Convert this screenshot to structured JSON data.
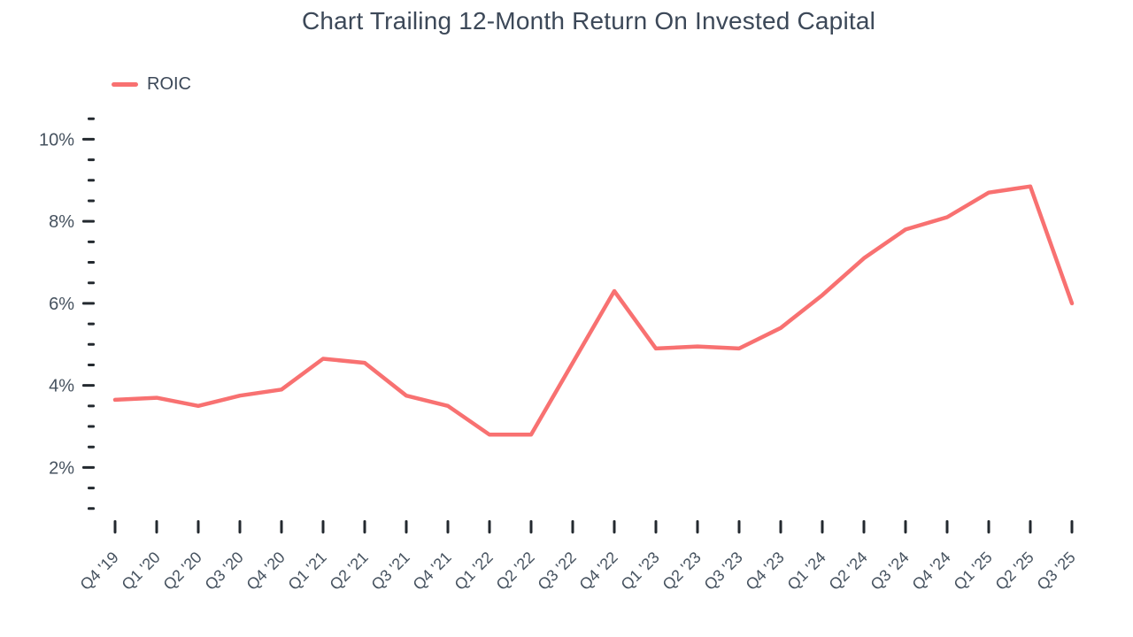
{
  "title": "Chart Trailing 12-Month Return On Invested Capital",
  "legend": {
    "items": [
      {
        "label": "ROIC",
        "color": "#F87171"
      }
    ]
  },
  "chart_data": {
    "type": "line",
    "title": "Chart Trailing 12-Month Return On Invested Capital",
    "xlabel": "",
    "ylabel": "",
    "categories": [
      "Q4 '19",
      "Q1 '20",
      "Q2 '20",
      "Q3 '20",
      "Q4 '20",
      "Q1 '21",
      "Q2 '21",
      "Q3 '21",
      "Q4 '21",
      "Q1 '22",
      "Q2 '22",
      "Q3 '22",
      "Q4 '22",
      "Q1 '23",
      "Q2 '23",
      "Q3 '23",
      "Q4 '23",
      "Q1 '24",
      "Q2 '24",
      "Q3 '24",
      "Q4 '24",
      "Q1 '25",
      "Q2 '25",
      "Q3 '25"
    ],
    "series": [
      {
        "name": "ROIC",
        "color": "#F87171",
        "values": [
          3.65,
          3.7,
          3.5,
          3.75,
          3.9,
          4.65,
          4.55,
          3.75,
          3.5,
          2.8,
          2.8,
          4.55,
          6.3,
          4.9,
          4.95,
          4.9,
          5.4,
          6.2,
          7.1,
          7.8,
          8.1,
          8.7,
          8.85,
          6.0
        ]
      }
    ],
    "y_axis": {
      "unit": "%",
      "min": 1.0,
      "max": 10.5,
      "minor_tick_step": 0.5,
      "major_ticks": [
        2,
        4,
        6,
        8,
        10
      ],
      "tick_labels": [
        "2%",
        "4%",
        "6%",
        "8%",
        "10%"
      ]
    },
    "grid": false,
    "legend_position": "top-left",
    "markers": false
  },
  "colors": {
    "background": "#ffffff",
    "line": "#F87171",
    "title_text": "#3c4858",
    "axis_label_text": "#46525f",
    "tick_mark": "#23292f"
  }
}
